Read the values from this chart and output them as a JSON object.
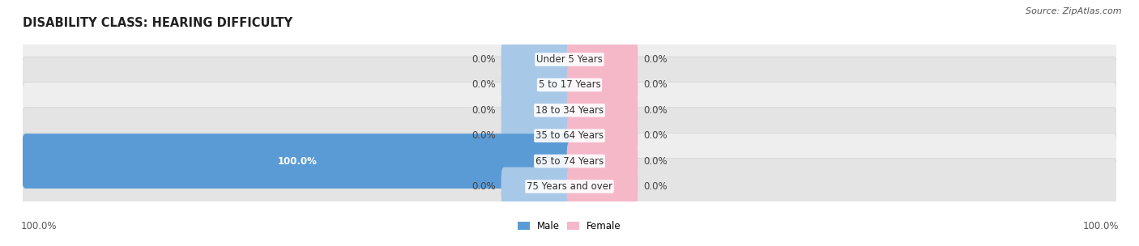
{
  "title": "DISABILITY CLASS: HEARING DIFFICULTY",
  "source_text": "Source: ZipAtlas.com",
  "categories": [
    "Under 5 Years",
    "5 to 17 Years",
    "18 to 34 Years",
    "35 to 64 Years",
    "65 to 74 Years",
    "75 Years and over"
  ],
  "male_values": [
    0.0,
    0.0,
    0.0,
    0.0,
    100.0,
    0.0
  ],
  "female_values": [
    0.0,
    0.0,
    0.0,
    0.0,
    0.0,
    0.0
  ],
  "male_color_light": "#a8c8e8",
  "male_color_full": "#5b9bd5",
  "female_color_light": "#f5b8c8",
  "female_color_full": "#f48fb1",
  "row_bg_even": "#eeeeee",
  "row_bg_odd": "#e4e4e4",
  "row_edge_color": "#cccccc",
  "max_val": 100.0,
  "legend_male": "Male",
  "legend_female": "Female",
  "title_fontsize": 10.5,
  "label_fontsize": 8.5,
  "source_fontsize": 8.0
}
